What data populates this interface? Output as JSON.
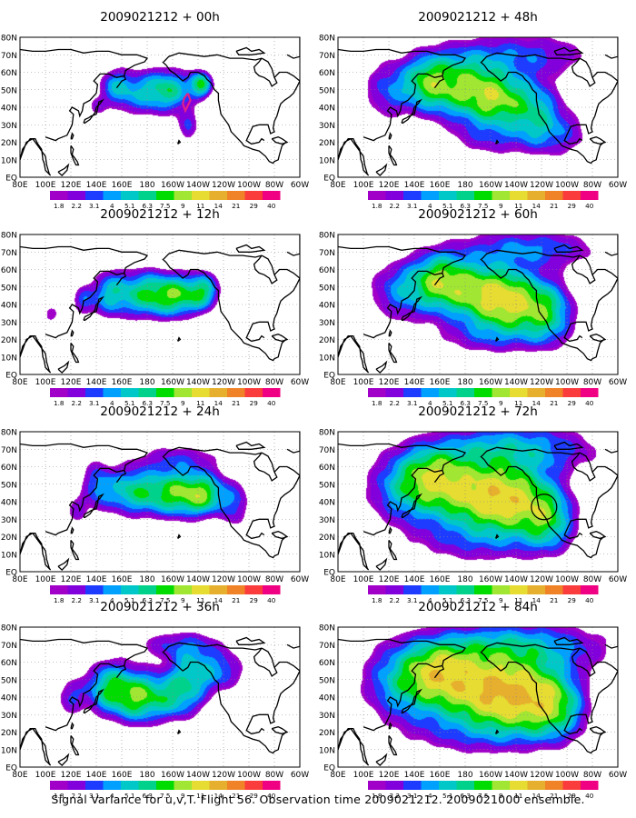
{
  "chart_data": {
    "type": "heatmap",
    "caption": "Signal Variance for u,v,T. Flight 56. Observation time 2009021212. 2009021000 ensemble.",
    "lon_labels": [
      "80E",
      "100E",
      "120E",
      "140E",
      "160E",
      "180",
      "160W",
      "140W",
      "120W",
      "100W",
      "80W",
      "60W"
    ],
    "lat_labels": [
      "EQ",
      "10N",
      "20N",
      "30N",
      "40N",
      "50N",
      "60N",
      "70N",
      "80N"
    ],
    "legend_values": [
      "1.8",
      "2.2",
      "3.1",
      "4",
      "5.1",
      "6.3",
      "7.5",
      "9",
      "11",
      "14",
      "21",
      "29",
      "40"
    ],
    "legend_colors": [
      "#a000c8",
      "#8200dc",
      "#1e3cff",
      "#00a0ff",
      "#00c8c8",
      "#00d28c",
      "#00dc00",
      "#a0e632",
      "#e6dc32",
      "#e6af2d",
      "#f08228",
      "#fa3c3c",
      "#f00082"
    ],
    "panels": [
      {
        "title": "2009021212 + 00h",
        "lead_hours": 0
      },
      {
        "title": "2009021212 + 12h",
        "lead_hours": 12
      },
      {
        "title": "2009021212 + 24h",
        "lead_hours": 24
      },
      {
        "title": "2009021212 + 36h",
        "lead_hours": 36
      },
      {
        "title": "2009021212 + 48h",
        "lead_hours": 48
      },
      {
        "title": "2009021212 + 60h",
        "lead_hours": 60
      },
      {
        "title": "2009021212 + 72h",
        "lead_hours": 72
      },
      {
        "title": "2009021212 + 84h",
        "lead_hours": 84
      }
    ]
  }
}
